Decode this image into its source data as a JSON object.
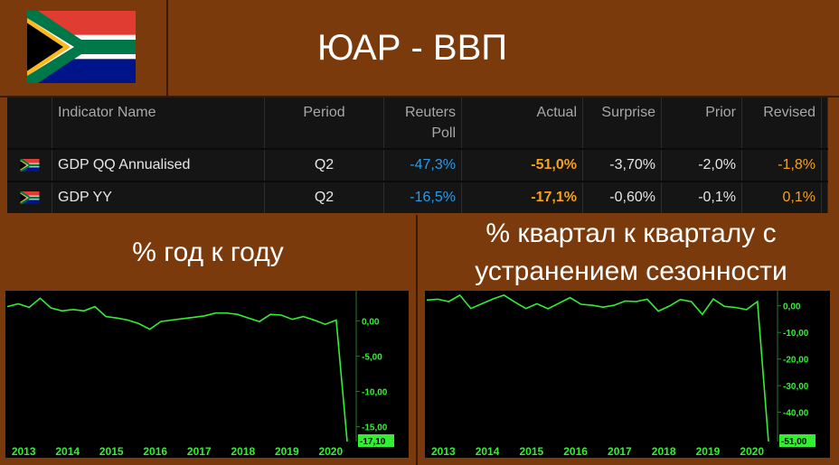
{
  "header": {
    "title": "ЮАР - ВВП"
  },
  "colors": {
    "background": "#7a3a0c",
    "line": "#33ee33",
    "poll": "#2e9ae6",
    "actual": "#f7a21b"
  },
  "table": {
    "headers": [
      "Indicator Name",
      "Period",
      "Reuters Poll",
      "Actual",
      "Surprise",
      "Prior",
      "Revised"
    ],
    "rows": [
      {
        "indicator": "GDP QQ Annualised",
        "period": "Q2",
        "poll": "-47,3%",
        "actual": "-51,0%",
        "surprise": "-3,70%",
        "prior": "-2,0%",
        "revised": "-1,8%"
      },
      {
        "indicator": "GDP YY",
        "period": "Q2",
        "poll": "-16,5%",
        "actual": "-17,1%",
        "surprise": "-0,60%",
        "prior": "-0,1%",
        "revised": "0,1%"
      }
    ]
  },
  "panels": {
    "left_title": "% год к году",
    "right_title": "% квартал к кварталу с устранением сезонности"
  },
  "chart_data": [
    {
      "type": "line",
      "x_ticks": [
        "2013",
        "2014",
        "2015",
        "2016",
        "2017",
        "2018",
        "2019",
        "2020"
      ],
      "y_ticks": [
        "0,00",
        "-5,00",
        "-10,00",
        "-15,00"
      ],
      "ylim": [
        -17.1,
        4.0
      ],
      "last_value_label": "-17,10",
      "values": [
        2.0,
        2.4,
        1.9,
        3.2,
        1.8,
        1.4,
        1.6,
        1.4,
        2.0,
        0.6,
        0.4,
        0.1,
        -0.4,
        -1.2,
        -0.1,
        0.1,
        0.3,
        0.5,
        0.7,
        1.1,
        1.1,
        0.9,
        0.4,
        -0.1,
        0.9,
        0.8,
        0.2,
        0.6,
        0.1,
        -0.5,
        0.1,
        -17.1
      ],
      "grid": false
    },
    {
      "type": "line",
      "x_ticks": [
        "2013",
        "2014",
        "2015",
        "2016",
        "2017",
        "2018",
        "2019",
        "2020"
      ],
      "y_ticks": [
        "0,00",
        "-10,00",
        "-20,00",
        "-30,00",
        "-40,00"
      ],
      "ylim": [
        -51.0,
        5.0
      ],
      "last_value_label": "-51,00",
      "values": [
        2.2,
        2.5,
        1.6,
        4.0,
        -1.0,
        0.8,
        2.6,
        4.0,
        1.4,
        -1.0,
        0.8,
        -1.1,
        1.0,
        3.1,
        0.6,
        0.2,
        -0.5,
        0.2,
        1.8,
        1.6,
        2.5,
        -2.0,
        -0.1,
        2.4,
        1.6,
        -3.2,
        2.6,
        -0.2,
        -0.6,
        -1.4,
        1.6,
        -51.0
      ],
      "grid": false
    }
  ]
}
